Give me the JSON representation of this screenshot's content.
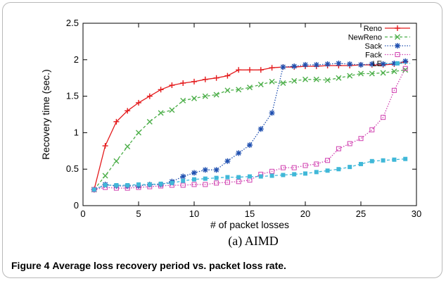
{
  "chart_data": {
    "type": "line",
    "xlabel": "# of packet losses",
    "ylabel": "Recovery time (sec.)",
    "xlim": [
      0,
      30
    ],
    "ylim": [
      0,
      2.5
    ],
    "x_ticks": [
      "0",
      "5",
      "10",
      "15",
      "20",
      "25",
      "30"
    ],
    "y_ticks": [
      "0",
      "0.5",
      "1",
      "1.5",
      "2",
      "2.5"
    ],
    "legend_position": "top-right",
    "grid": false,
    "x": [
      1,
      2,
      3,
      4,
      5,
      6,
      7,
      8,
      9,
      10,
      11,
      12,
      13,
      14,
      15,
      16,
      17,
      18,
      19,
      20,
      21,
      22,
      23,
      24,
      25,
      26,
      27,
      28,
      29
    ],
    "series": [
      {
        "name": "Reno",
        "color": "#e41a1c",
        "marker": "plus",
        "line": "solid",
        "values": [
          0.22,
          0.82,
          1.15,
          1.3,
          1.41,
          1.5,
          1.59,
          1.65,
          1.68,
          1.7,
          1.73,
          1.75,
          1.78,
          1.86,
          1.86,
          1.86,
          1.89,
          1.9,
          1.9,
          1.91,
          1.91,
          1.92,
          1.92,
          1.92,
          1.93,
          1.93,
          1.93,
          1.94,
          1.97
        ]
      },
      {
        "name": "NewReno",
        "color": "#4daf4a",
        "marker": "x",
        "line": "dashed",
        "values": [
          0.22,
          0.41,
          0.61,
          0.81,
          1.0,
          1.15,
          1.27,
          1.31,
          1.44,
          1.47,
          1.5,
          1.52,
          1.58,
          1.59,
          1.62,
          1.66,
          1.7,
          1.68,
          1.71,
          1.73,
          1.73,
          1.72,
          1.75,
          1.78,
          1.81,
          1.81,
          1.82,
          1.84,
          1.86
        ]
      },
      {
        "name": "Sack",
        "color": "#2050b0",
        "marker": "star",
        "line": "dotted",
        "values": [
          0.22,
          0.29,
          0.27,
          0.27,
          0.27,
          0.29,
          0.29,
          0.33,
          0.4,
          0.45,
          0.49,
          0.49,
          0.61,
          0.72,
          0.83,
          1.05,
          1.27,
          1.9,
          1.91,
          1.93,
          1.93,
          1.94,
          1.95,
          1.94,
          1.93,
          1.94,
          1.94,
          1.95,
          1.98
        ]
      },
      {
        "name": "Fack",
        "color": "#d040b0",
        "marker": "square-open",
        "line": "dotted",
        "values": [
          0.22,
          0.25,
          0.24,
          0.24,
          0.25,
          0.26,
          0.27,
          0.28,
          0.28,
          0.29,
          0.29,
          0.31,
          0.32,
          0.33,
          0.35,
          0.43,
          0.47,
          0.52,
          0.52,
          0.55,
          0.57,
          0.62,
          0.78,
          0.85,
          0.92,
          1.04,
          1.21,
          1.58,
          1.88
        ]
      },
      {
        "name": "LE",
        "color": "#40b8d8",
        "marker": "square-filled",
        "line": "dashed",
        "values": [
          0.22,
          0.28,
          0.28,
          0.28,
          0.29,
          0.29,
          0.3,
          0.31,
          0.34,
          0.36,
          0.37,
          0.38,
          0.39,
          0.39,
          0.4,
          0.4,
          0.41,
          0.42,
          0.43,
          0.44,
          0.46,
          0.48,
          0.5,
          0.53,
          0.57,
          0.61,
          0.62,
          0.63,
          0.64
        ]
      }
    ]
  },
  "subcaption": "(a) AIMD",
  "caption": {
    "number": "Figure 4",
    "text": "Average loss recovery period vs. packet loss rate."
  }
}
